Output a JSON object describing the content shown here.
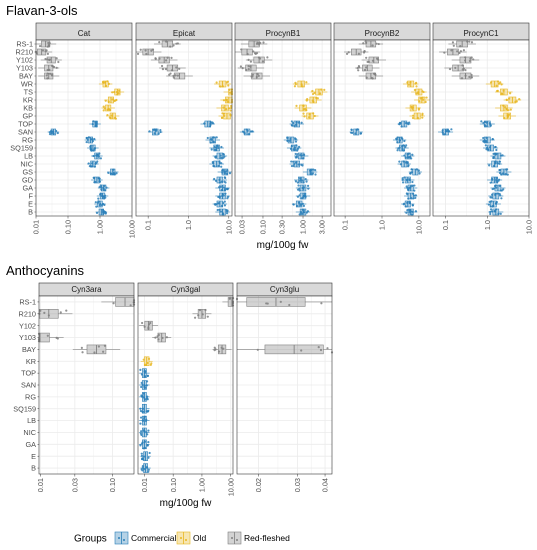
{
  "colors": {
    "Commercial": "#2a7fb8",
    "Old": "#e8b723",
    "Red-fleshed": "#808080",
    "strip_fill": "#d9d9d9",
    "grid": "#ebebeb"
  },
  "legend": {
    "title": "Groups",
    "items": [
      "Commercial",
      "Old",
      "Red-fleshed"
    ]
  },
  "chart_data": [
    {
      "type": "boxplot",
      "title": "Flavan-3-ols",
      "xlabel": "mg/100g fw",
      "x_scale": "log",
      "orientation": "horizontal",
      "categories": [
        "RS-1",
        "R210",
        "Y102",
        "Y103",
        "BAY",
        "WR",
        "TS",
        "KR",
        "KB",
        "GP",
        "TOP",
        "SAN",
        "RG",
        "SQ159",
        "LB",
        "NIC",
        "GS",
        "GD",
        "GA",
        "F",
        "E",
        "B"
      ],
      "category_groups": [
        "Red-fleshed",
        "Red-fleshed",
        "Red-fleshed",
        "Red-fleshed",
        "Red-fleshed",
        "Old",
        "Old",
        "Old",
        "Old",
        "Old",
        "Commercial",
        "Commercial",
        "Commercial",
        "Commercial",
        "Commercial",
        "Commercial",
        "Commercial",
        "Commercial",
        "Commercial",
        "Commercial",
        "Commercial",
        "Commercial"
      ],
      "panels": [
        {
          "name": "Cat",
          "xlim": [
            0.01,
            10
          ],
          "ticks": [
            0.01,
            0.1,
            1,
            10
          ],
          "tick_labels": [
            "0.01",
            "0.10",
            "1.00",
            "10.00"
          ],
          "medians": [
            0.02,
            0.015,
            0.03,
            0.025,
            0.025,
            1.5,
            3.5,
            2.2,
            1.8,
            2.5,
            0.7,
            0.035,
            0.5,
            0.6,
            0.8,
            0.6,
            2.5,
            0.8,
            1.3,
            1.2,
            1.0,
            1.1
          ]
        },
        {
          "name": "Epicat",
          "xlim": [
            0.05,
            12
          ],
          "ticks": [
            0.1,
            1,
            10
          ],
          "tick_labels": [
            "0.1",
            "1.0",
            "10.0"
          ],
          "medians": [
            0.3,
            0.1,
            0.25,
            0.4,
            0.6,
            7,
            12,
            10,
            8,
            9,
            3,
            0.15,
            4,
            5,
            6,
            5,
            8,
            6,
            7,
            7,
            6,
            7
          ]
        },
        {
          "name": "ProcynB1",
          "xlim": [
            0.02,
            5
          ],
          "ticks": [
            0.03,
            0.1,
            0.3,
            1,
            3
          ],
          "tick_labels": [
            "0.03",
            "0.10",
            "0.30",
            "1.00",
            "3.00"
          ],
          "medians": [
            0.06,
            0.04,
            0.08,
            0.05,
            0.07,
            0.9,
            2.5,
            1.8,
            1.0,
            1.5,
            0.7,
            0.04,
            0.5,
            0.6,
            0.9,
            0.7,
            1.5,
            0.9,
            1.0,
            1.0,
            0.8,
            1.0
          ]
        },
        {
          "name": "ProcynB2",
          "xlim": [
            0.05,
            20
          ],
          "ticks": [
            0.1,
            1,
            10
          ],
          "tick_labels": [
            "0.1",
            "1.0",
            "10.0"
          ],
          "medians": [
            0.5,
            0.2,
            0.6,
            0.4,
            0.5,
            6,
            10,
            12,
            7,
            9,
            4,
            0.2,
            3,
            3.5,
            5,
            4,
            8,
            5,
            6,
            6,
            5,
            6
          ]
        },
        {
          "name": "ProcynC1",
          "xlim": [
            0.05,
            10
          ],
          "ticks": [
            0.1,
            1,
            10
          ],
          "tick_labels": [
            "0.1",
            "1.0",
            "10.0"
          ],
          "medians": [
            0.25,
            0.15,
            0.3,
            0.2,
            0.3,
            1.5,
            2.5,
            4,
            2.5,
            3,
            1.0,
            0.1,
            1.0,
            1.2,
            1.8,
            1.5,
            2.5,
            1.5,
            1.8,
            1.6,
            1.4,
            1.6
          ]
        }
      ]
    },
    {
      "type": "boxplot",
      "title": "Anthocyanins",
      "xlabel": "mg/100g fw",
      "x_scale": "log",
      "orientation": "horizontal",
      "categories": [
        "RS-1",
        "R210",
        "Y102",
        "Y103",
        "BAY",
        "KR",
        "TOP",
        "SAN",
        "RG",
        "SQ159",
        "LB",
        "NIC",
        "GA",
        "E",
        "B"
      ],
      "category_groups": [
        "Red-fleshed",
        "Red-fleshed",
        "Red-fleshed",
        "Red-fleshed",
        "Red-fleshed",
        "Old",
        "Commercial",
        "Commercial",
        "Commercial",
        "Commercial",
        "Commercial",
        "Commercial",
        "Commercial",
        "Commercial",
        "Commercial"
      ],
      "panels": [
        {
          "name": "Cyn3ara",
          "xlim": [
            0.0095,
            0.2
          ],
          "ticks": [
            0.01,
            0.03,
            0.1
          ],
          "tick_labels": [
            "0.01",
            "0.03",
            "0.10"
          ],
          "medians": [
            0.15,
            0.013,
            null,
            0.0098,
            0.06,
            null,
            null,
            null,
            null,
            null,
            null,
            null,
            null,
            null,
            null
          ]
        },
        {
          "name": "Cyn3gal",
          "xlim": [
            0.006,
            12
          ],
          "ticks": [
            0.01,
            0.1,
            1,
            10
          ],
          "tick_labels": [
            "0.01",
            "0.10",
            "1.00",
            "10.00"
          ],
          "medians": [
            11,
            1.0,
            0.014,
            0.04,
            5,
            0.012,
            0.01,
            0.01,
            0.01,
            0.01,
            0.01,
            0.01,
            0.01,
            0.011,
            0.011
          ]
        },
        {
          "name": "Cyn3glu",
          "xlim": [
            0.016,
            0.043
          ],
          "ticks": [
            0.02,
            0.03,
            0.04
          ],
          "tick_labels": [
            "0.02",
            "0.03",
            "0.04"
          ],
          "medians": [
            0.024,
            null,
            null,
            null,
            0.029,
            null,
            null,
            null,
            null,
            null,
            null,
            null,
            null,
            null,
            null
          ]
        }
      ]
    }
  ]
}
